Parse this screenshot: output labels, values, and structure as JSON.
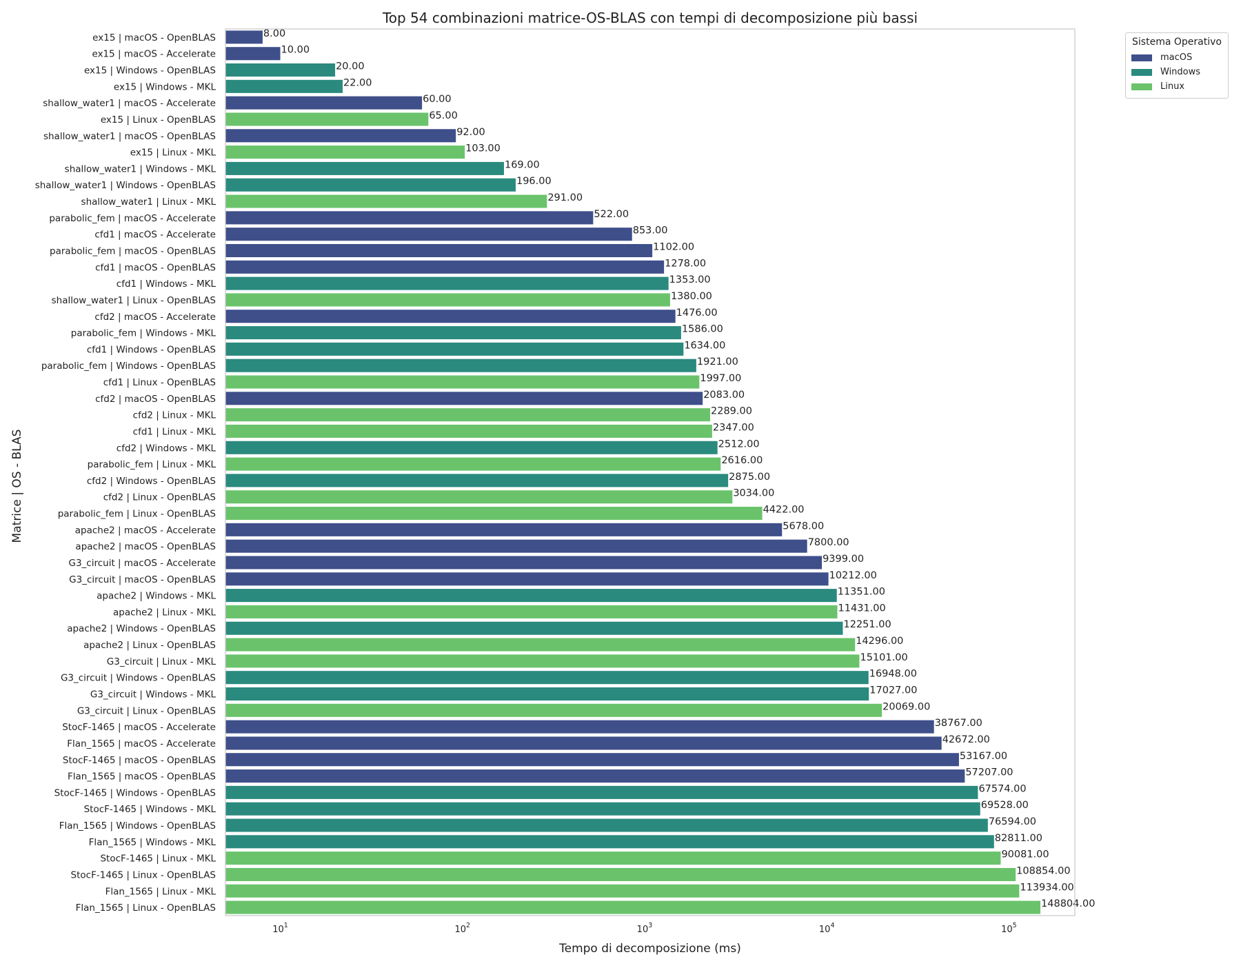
{
  "chart_data": {
    "type": "bar",
    "orientation": "horizontal",
    "title": "Top 54 combinazioni matrice-OS-BLAS con tempi di decomposizione più bassi",
    "xlabel": "Tempo di decomposizione (ms)",
    "ylabel": "Matrice | OS - BLAS",
    "xscale": "log",
    "xlim": [
      5,
      230000
    ],
    "xticks": [
      10,
      100,
      1000,
      10000,
      100000
    ],
    "grid": false,
    "legend": {
      "title": "Sistema Operativo",
      "placement": "outside-top-right",
      "entries": [
        {
          "name": "macOS",
          "color": "#3e4f8a"
        },
        {
          "name": "Windows",
          "color": "#2a8a7e"
        },
        {
          "name": "Linux",
          "color": "#6ac36b"
        }
      ]
    },
    "categories": [
      "ex15 | macOS - OpenBLAS",
      "ex15 | macOS - Accelerate",
      "ex15 | Windows - OpenBLAS",
      "ex15 | Windows - MKL",
      "shallow_water1 | macOS - Accelerate",
      "ex15 | Linux - OpenBLAS",
      "shallow_water1 | macOS - OpenBLAS",
      "ex15 | Linux - MKL",
      "shallow_water1 | Windows - MKL",
      "shallow_water1 | Windows - OpenBLAS",
      "shallow_water1 | Linux - MKL",
      "parabolic_fem | macOS - Accelerate",
      "cfd1 | macOS - Accelerate",
      "parabolic_fem | macOS - OpenBLAS",
      "cfd1 | macOS - OpenBLAS",
      "cfd1 | Windows - MKL",
      "shallow_water1 | Linux - OpenBLAS",
      "cfd2 | macOS - Accelerate",
      "parabolic_fem | Windows - MKL",
      "cfd1 | Windows - OpenBLAS",
      "parabolic_fem | Windows - OpenBLAS",
      "cfd1 | Linux - OpenBLAS",
      "cfd2 | macOS - OpenBLAS",
      "cfd2 | Linux - MKL",
      "cfd1 | Linux - MKL",
      "cfd2 | Windows - MKL",
      "parabolic_fem | Linux - MKL",
      "cfd2 | Windows - OpenBLAS",
      "cfd2 | Linux - OpenBLAS",
      "parabolic_fem | Linux - OpenBLAS",
      "apache2 | macOS - Accelerate",
      "apache2 | macOS - OpenBLAS",
      "G3_circuit | macOS - Accelerate",
      "G3_circuit | macOS - OpenBLAS",
      "apache2 | Windows - MKL",
      "apache2 | Linux - MKL",
      "apache2 | Windows - OpenBLAS",
      "apache2 | Linux - OpenBLAS",
      "G3_circuit | Linux - MKL",
      "G3_circuit | Windows - OpenBLAS",
      "G3_circuit | Windows - MKL",
      "G3_circuit | Linux - OpenBLAS",
      "StocF-1465 | macOS - Accelerate",
      "Flan_1565 | macOS - Accelerate",
      "StocF-1465 | macOS - OpenBLAS",
      "Flan_1565 | macOS - OpenBLAS",
      "StocF-1465 | Windows - OpenBLAS",
      "StocF-1465 | Windows - MKL",
      "Flan_1565 | Windows - OpenBLAS",
      "Flan_1565 | Windows - MKL",
      "StocF-1465 | Linux - MKL",
      "StocF-1465 | Linux - OpenBLAS",
      "Flan_1565 | Linux - MKL",
      "Flan_1565 | Linux - OpenBLAS"
    ],
    "values": [
      8,
      10,
      20,
      22,
      60,
      65,
      92,
      103,
      169,
      196,
      291,
      522,
      853,
      1102,
      1278,
      1353,
      1380,
      1476,
      1586,
      1634,
      1921,
      1997,
      2083,
      2289,
      2347,
      2512,
      2616,
      2875,
      3034,
      4422,
      5678,
      7800,
      9399,
      10212,
      11351,
      11431,
      12251,
      14296,
      15101,
      16948,
      17027,
      20069,
      38767,
      42672,
      53167,
      57207,
      67574,
      69528,
      76594,
      82811,
      90081,
      108854,
      113934,
      148804
    ],
    "value_labels": [
      "8.00",
      "10.00",
      "20.00",
      "22.00",
      "60.00",
      "65.00",
      "92.00",
      "103.00",
      "169.00",
      "196.00",
      "291.00",
      "522.00",
      "853.00",
      "1102.00",
      "1278.00",
      "1353.00",
      "1380.00",
      "1476.00",
      "1586.00",
      "1634.00",
      "1921.00",
      "1997.00",
      "2083.00",
      "2289.00",
      "2347.00",
      "2512.00",
      "2616.00",
      "2875.00",
      "3034.00",
      "4422.00",
      "5678.00",
      "7800.00",
      "9399.00",
      "10212.00",
      "11351.00",
      "11431.00",
      "12251.00",
      "14296.00",
      "15101.00",
      "16948.00",
      "17027.00",
      "20069.00",
      "38767.00",
      "42672.00",
      "53167.00",
      "57207.00",
      "67574.00",
      "69528.00",
      "76594.00",
      "82811.00",
      "90081.00",
      "108854.00",
      "113934.00",
      "148804.00"
    ],
    "os": [
      "macOS",
      "macOS",
      "Windows",
      "Windows",
      "macOS",
      "Linux",
      "macOS",
      "Linux",
      "Windows",
      "Windows",
      "Linux",
      "macOS",
      "macOS",
      "macOS",
      "macOS",
      "Windows",
      "Linux",
      "macOS",
      "Windows",
      "Windows",
      "Windows",
      "Linux",
      "macOS",
      "Linux",
      "Linux",
      "Windows",
      "Linux",
      "Windows",
      "Linux",
      "Linux",
      "macOS",
      "macOS",
      "macOS",
      "macOS",
      "Windows",
      "Linux",
      "Windows",
      "Linux",
      "Linux",
      "Windows",
      "Windows",
      "Linux",
      "macOS",
      "macOS",
      "macOS",
      "macOS",
      "Windows",
      "Windows",
      "Windows",
      "Windows",
      "Linux",
      "Linux",
      "Linux",
      "Linux"
    ]
  }
}
